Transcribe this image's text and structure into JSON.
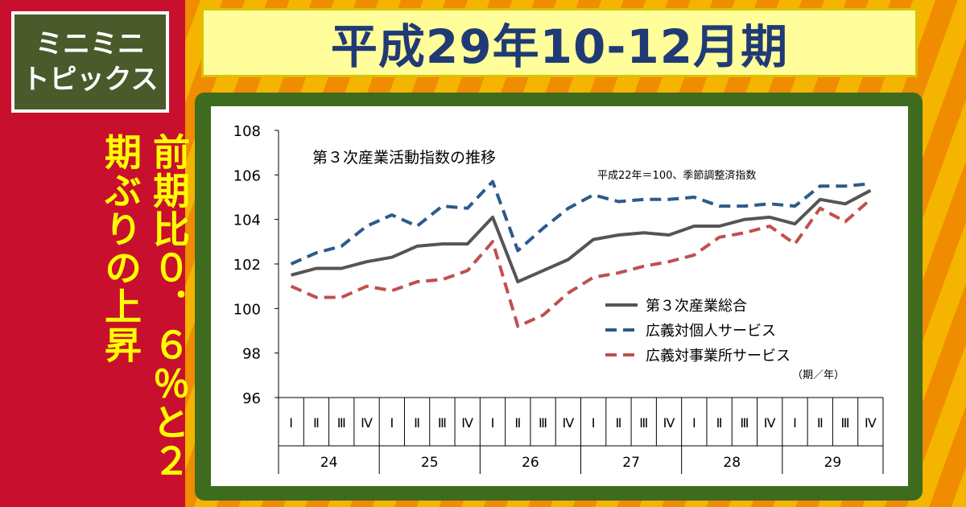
{
  "badge": {
    "line1": "ミニミニ",
    "line2": "トピックス"
  },
  "headline": "前期比０．６％と２期ぶりの上昇",
  "title": "平成29年10-12月期",
  "colors": {
    "total": "#555555",
    "individual": "#2e5a8c",
    "business": "#c0504d",
    "badge": "#4a5a2a",
    "frame": "#3f6b1f",
    "left_panel": "#c8102e"
  },
  "chart_data": {
    "type": "line",
    "title": "第３次産業活動指数の推移",
    "note": "平成22年＝100、季節調整済指数",
    "xlabel": "（期／年）",
    "ylim": [
      96,
      108
    ],
    "yticks": [
      "96",
      "98",
      "100",
      "102",
      "104",
      "106",
      "108"
    ],
    "quarters": [
      "Ⅰ",
      "Ⅱ",
      "Ⅲ",
      "Ⅳ"
    ],
    "years": [
      "24",
      "25",
      "26",
      "27",
      "28",
      "29"
    ],
    "legend_position": "center-right",
    "series": [
      {
        "name": "第３次産業総合",
        "style": "solid",
        "color": "#555555",
        "values": [
          101.5,
          101.8,
          101.8,
          102.1,
          102.3,
          102.8,
          102.9,
          102.9,
          104.1,
          101.2,
          101.7,
          102.2,
          103.1,
          103.3,
          103.4,
          103.3,
          103.7,
          103.7,
          104.0,
          104.1,
          103.8,
          104.9,
          104.7,
          105.3
        ]
      },
      {
        "name": "広義対個人サービス",
        "style": "dashed",
        "color": "#2e5a8c",
        "values": [
          102.0,
          102.5,
          102.8,
          103.7,
          104.2,
          103.7,
          104.6,
          104.5,
          105.7,
          102.6,
          103.6,
          104.5,
          105.1,
          104.8,
          104.9,
          104.9,
          105.0,
          104.6,
          104.6,
          104.7,
          104.6,
          105.5,
          105.5,
          105.6
        ]
      },
      {
        "name": "広義対事業所サービス",
        "style": "dashed",
        "color": "#c0504d",
        "values": [
          101.0,
          100.5,
          100.5,
          101.0,
          100.8,
          101.2,
          101.3,
          101.7,
          103.0,
          99.2,
          99.7,
          100.7,
          101.4,
          101.6,
          101.9,
          102.1,
          102.4,
          103.2,
          103.4,
          103.7,
          102.9,
          104.5,
          103.9,
          104.9
        ]
      }
    ]
  }
}
